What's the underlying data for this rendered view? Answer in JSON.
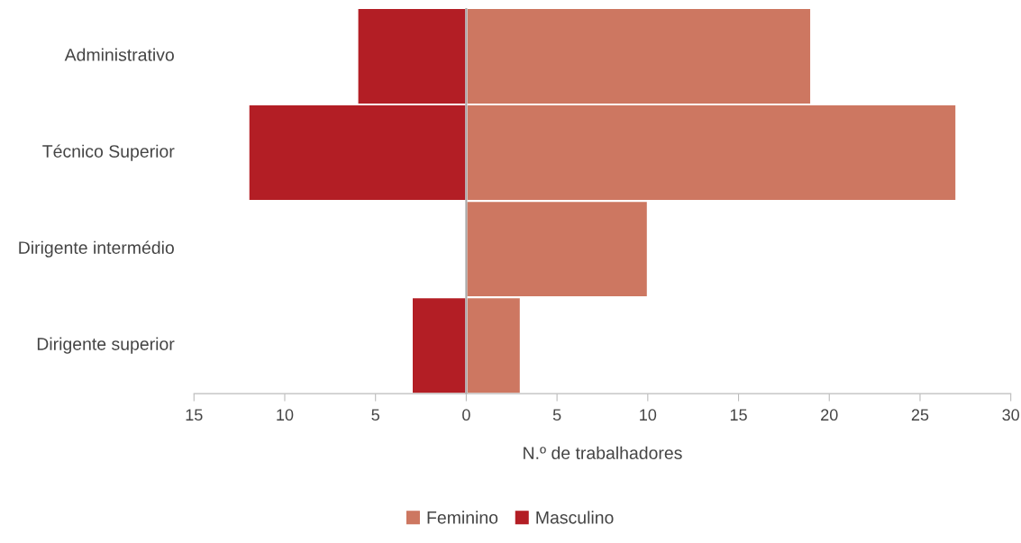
{
  "chart_data": {
    "type": "bar",
    "orientation": "horizontal",
    "categories": [
      "Administrativo",
      "Técnico Superior",
      "Dirigente intermédio",
      "Dirigente superior"
    ],
    "series": [
      {
        "name": "Feminino",
        "color": "#cd7761",
        "values": [
          19,
          27,
          10,
          3
        ]
      },
      {
        "name": "Masculino",
        "color": "#b31e25",
        "values": [
          -6,
          -12,
          0,
          -3
        ]
      }
    ],
    "xlim": [
      -15,
      30
    ],
    "xticks": [
      {
        "value": -15,
        "label": "15"
      },
      {
        "value": -10,
        "label": "10"
      },
      {
        "value": -5,
        "label": "5"
      },
      0,
      5,
      10,
      15,
      20,
      25,
      30
    ],
    "xlabel": "N.º de trabalhadores",
    "legend": "bottom",
    "grid": false,
    "stacked": true,
    "ref_lines": [
      {
        "axis": "x",
        "value": 0,
        "color": "#aaaaaa"
      }
    ]
  }
}
